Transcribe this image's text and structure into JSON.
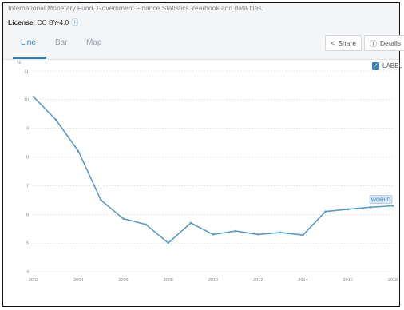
{
  "header": {
    "source": "International Monetary Fund, Government Finance Statistics Yearbook and data files.",
    "license_label": "License",
    "license_value": ": CC BY-4.0"
  },
  "tabs": [
    {
      "label": "Line",
      "active": true
    },
    {
      "label": "Bar",
      "active": false
    },
    {
      "label": "Map",
      "active": false
    }
  ],
  "toolbar": {
    "share_label": "Share",
    "details_label": "Details"
  },
  "label_toggle": {
    "text": "LABEL",
    "checked": true
  },
  "icons": {
    "share": "share-icon",
    "details": "info-circle-icon",
    "license_info": "info-icon"
  },
  "colors": {
    "accent": "#3b7fb5",
    "series": "#5a9bc9"
  },
  "chart_data": {
    "type": "line",
    "title": "",
    "xlabel": "",
    "ylabel": "%",
    "ylim": [
      4,
      11
    ],
    "yticks": [
      4,
      5,
      6,
      7,
      8,
      9,
      10,
      11
    ],
    "xticks": [
      2002,
      2004,
      2006,
      2008,
      2010,
      2012,
      2014,
      2016,
      2018
    ],
    "grid": true,
    "series": [
      {
        "name": "WORLD",
        "x": [
          2002,
          2003,
          2004,
          2005,
          2006,
          2007,
          2008,
          2009,
          2010,
          2011,
          2012,
          2013,
          2014,
          2015,
          2016,
          2017,
          2018
        ],
        "values": [
          10.1,
          9.3,
          8.2,
          6.5,
          5.85,
          5.65,
          5.0,
          5.7,
          5.3,
          5.42,
          5.3,
          5.37,
          5.28,
          6.1,
          6.18,
          6.25,
          6.3
        ]
      }
    ]
  }
}
